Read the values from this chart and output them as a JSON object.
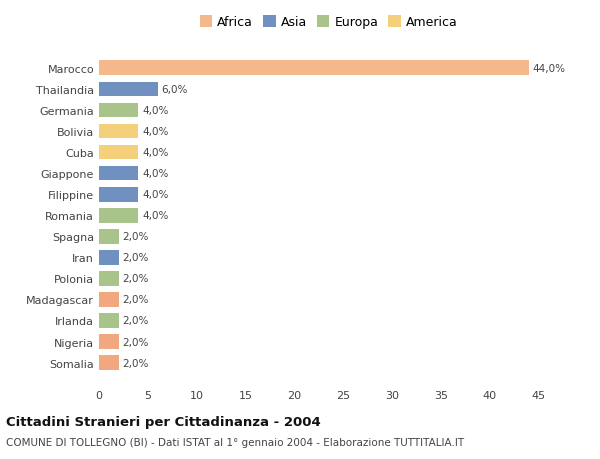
{
  "countries": [
    "Somalia",
    "Nigeria",
    "Irlanda",
    "Madagascar",
    "Polonia",
    "Iran",
    "Spagna",
    "Romania",
    "Filippine",
    "Giappone",
    "Cuba",
    "Bolivia",
    "Germania",
    "Thailandia",
    "Marocco"
  ],
  "values": [
    2.0,
    2.0,
    2.0,
    2.0,
    2.0,
    2.0,
    2.0,
    4.0,
    4.0,
    4.0,
    4.0,
    4.0,
    4.0,
    6.0,
    44.0
  ],
  "colors": [
    "#F2A87E",
    "#F2A87E",
    "#A8C48A",
    "#F2A87E",
    "#A8C48A",
    "#7090C0",
    "#A8C48A",
    "#A8C48A",
    "#7090C0",
    "#7090C0",
    "#F5D07A",
    "#F5D07A",
    "#A8C48A",
    "#7090C0",
    "#F5B88A"
  ],
  "labels": [
    "2,0%",
    "2,0%",
    "2,0%",
    "2,0%",
    "2,0%",
    "2,0%",
    "2,0%",
    "4,0%",
    "4,0%",
    "4,0%",
    "4,0%",
    "4,0%",
    "4,0%",
    "6,0%",
    "44,0%"
  ],
  "xlim": [
    0,
    47
  ],
  "xticks": [
    0,
    5,
    10,
    15,
    20,
    25,
    30,
    35,
    40,
    45
  ],
  "title": "Cittadini Stranieri per Cittadinanza - 2004",
  "subtitle": "COMUNE DI TOLLEGNO (BI) - Dati ISTAT al 1° gennaio 2004 - Elaborazione TUTTITALIA.IT",
  "legend_labels": [
    "Africa",
    "Asia",
    "Europa",
    "America"
  ],
  "legend_colors": [
    "#F5B88A",
    "#7090C0",
    "#A8C48A",
    "#F5D07A"
  ],
  "bg_color": "#FFFFFF",
  "bar_height": 0.7
}
